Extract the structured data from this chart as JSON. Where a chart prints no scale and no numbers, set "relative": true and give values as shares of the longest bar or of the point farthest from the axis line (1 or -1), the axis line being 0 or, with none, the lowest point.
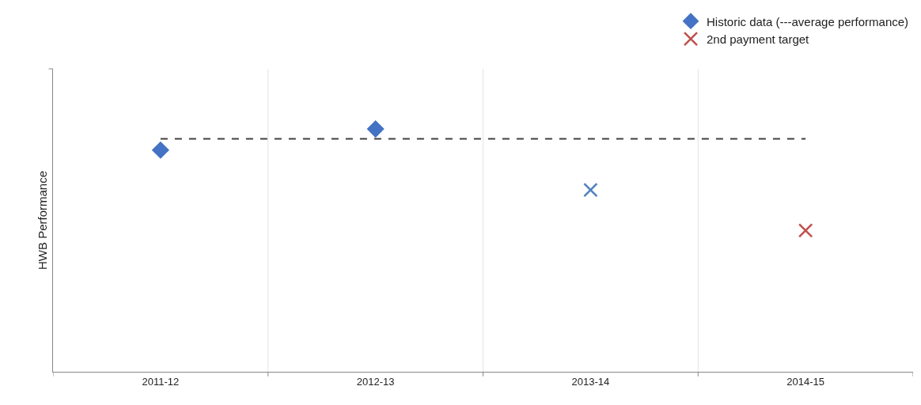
{
  "chart_data": {
    "type": "scatter",
    "relative": true,
    "ylabel": "HWB Performance",
    "categories": [
      "2011-12",
      "2012-13",
      "2013-14",
      "2014-15"
    ],
    "series": [
      {
        "name": "Historic data (---average performance)",
        "color": "#4472c4",
        "marker": "diamond",
        "values": [
          0.913,
          1,
          null,
          null
        ]
      },
      {
        "color": "#4f81bd",
        "marker": "cross",
        "values": [
          null,
          null,
          0.749,
          null
        ]
      },
      {
        "name": "2nd payment target",
        "color": "#c0504d",
        "marker": "cross",
        "values": [
          null,
          null,
          null,
          0.582
        ]
      }
    ],
    "ref_lines": [
      {
        "axis": "y",
        "value": 0.96,
        "color": "#404040",
        "line_style": "dashed"
      }
    ],
    "grid": "x",
    "legend": "top right"
  }
}
